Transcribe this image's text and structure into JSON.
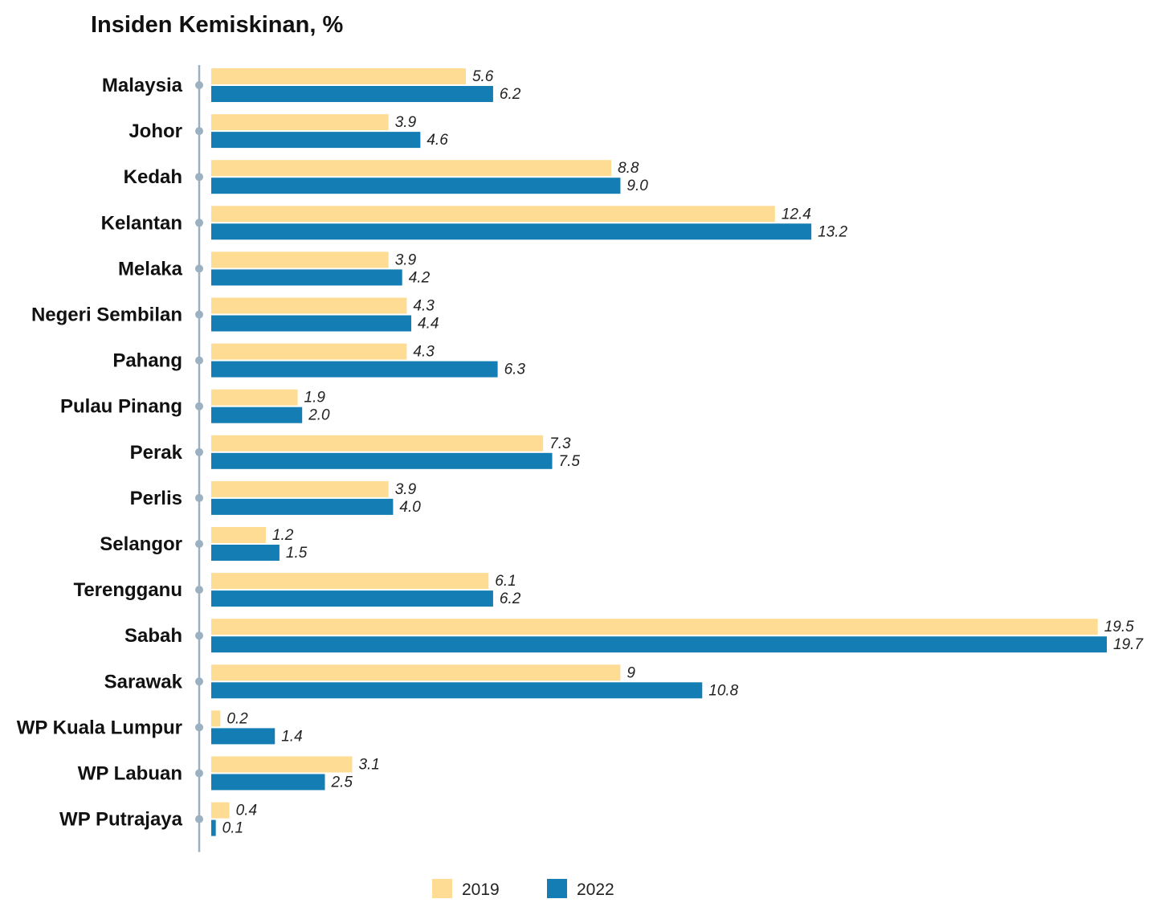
{
  "chart_data": {
    "type": "bar",
    "orientation": "horizontal",
    "title": "Insiden Kemiskinan, %",
    "xlabel": "",
    "ylabel": "",
    "xlim": [
      0,
      19.7
    ],
    "grid": false,
    "legend_position": "bottom",
    "categories": [
      "Malaysia",
      "Johor",
      "Kedah",
      "Kelantan",
      "Melaka",
      "Negeri Sembilan",
      "Pahang",
      "Pulau Pinang",
      "Perak",
      "Perlis",
      "Selangor",
      "Terengganu",
      "Sabah",
      "Sarawak",
      "WP Kuala Lumpur",
      "WP Labuan",
      "WP Putrajaya"
    ],
    "series": [
      {
        "name": "2019",
        "color": "#FFDC94",
        "values": [
          5.6,
          3.9,
          8.8,
          12.4,
          3.9,
          4.3,
          4.3,
          1.9,
          7.3,
          3.9,
          1.2,
          6.1,
          19.5,
          9,
          0.2,
          3.1,
          0.4
        ],
        "labels": [
          "5.6",
          "3.9",
          "8.8",
          "12.4",
          "3.9",
          "4.3",
          "4.3",
          "1.9",
          "7.3",
          "3.9",
          "1.2",
          "6.1",
          "19.5",
          "9",
          "0.2",
          "3.1",
          "0.4"
        ]
      },
      {
        "name": "2022",
        "color": "#137DB4",
        "values": [
          6.2,
          4.6,
          9.0,
          13.2,
          4.2,
          4.4,
          6.3,
          2.0,
          7.5,
          4.0,
          1.5,
          6.2,
          19.7,
          10.8,
          1.4,
          2.5,
          0.1
        ],
        "labels": [
          "6.2",
          "4.6",
          "9.0",
          "13.2",
          "4.2",
          "4.4",
          "6.3",
          "2.0",
          "7.5",
          "4.0",
          "1.5",
          "6.2",
          "19.7",
          "10.8",
          "1.4",
          "2.5",
          "0.1"
        ]
      }
    ],
    "axis_line_color": "#9BB0C0"
  }
}
